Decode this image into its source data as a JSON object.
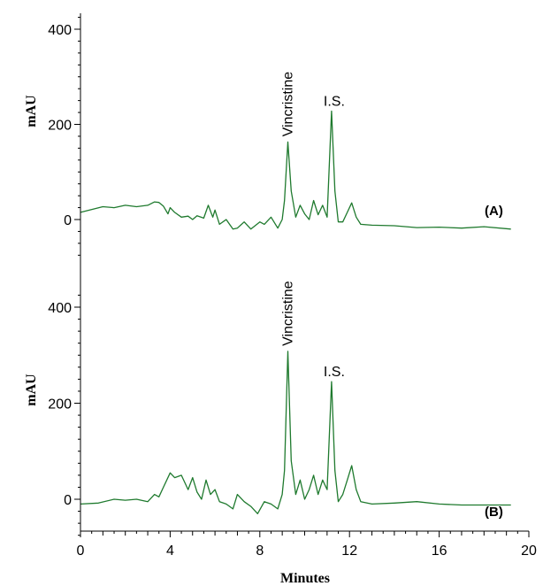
{
  "chart_data": {
    "type": "line",
    "line_color": "#1f7a2e",
    "grid": false,
    "shared_x": true,
    "xlabel": "Minutes",
    "xlim": [
      0,
      20
    ],
    "x_ticks": [
      "0",
      "4",
      "8",
      "12",
      "16",
      "20"
    ],
    "panels": [
      {
        "label": "(A)",
        "ylabel": "mAU",
        "ylim": [
          -100,
          450
        ],
        "y_ticks": [
          "0",
          "200",
          "400"
        ],
        "annotations": [
          {
            "text": "Vincristine",
            "x": 9.25,
            "y": 163,
            "rotated": true
          },
          {
            "text": "I.S.",
            "x": 11.2,
            "y": 228,
            "rotated": false
          }
        ],
        "series": [
          {
            "x": [
              0,
              1,
              1.5,
              2,
              2.5,
              3,
              3.3,
              3.5,
              3.7,
              3.9,
              4.0,
              4.2,
              4.5,
              4.8,
              5.0,
              5.2,
              5.5,
              5.7,
              5.9,
              6.0,
              6.2,
              6.5,
              6.8,
              7.0,
              7.3,
              7.6,
              8.0,
              8.2,
              8.5,
              8.8,
              9.0,
              9.1,
              9.25,
              9.4,
              9.6,
              9.8,
              10.0,
              10.2,
              10.4,
              10.6,
              10.8,
              11.0,
              11.2,
              11.35,
              11.5,
              11.7,
              11.9,
              12.1,
              12.3,
              12.5,
              13,
              14,
              15,
              16,
              17,
              18,
              19.2
            ],
            "y": [
              15,
              27,
              25,
              30,
              27,
              30,
              37,
              36,
              28,
              12,
              25,
              15,
              5,
              7,
              0,
              8,
              3,
              30,
              5,
              20,
              -10,
              0,
              -20,
              -18,
              -5,
              -20,
              -5,
              -10,
              5,
              -18,
              0,
              40,
              163,
              60,
              5,
              30,
              12,
              0,
              40,
              10,
              30,
              5,
              228,
              60,
              -5,
              -5,
              15,
              35,
              5,
              -10,
              -12,
              -13,
              -17,
              -16,
              -18,
              -15,
              -20
            ]
          }
        ]
      },
      {
        "label": "(B)",
        "ylabel": "mAU",
        "ylim": [
          -100,
          450
        ],
        "y_ticks": [
          "0",
          "200",
          "400"
        ],
        "annotations": [
          {
            "text": "Vincristine",
            "x": 9.25,
            "y": 308,
            "rotated": true
          },
          {
            "text": "I.S.",
            "x": 11.2,
            "y": 245,
            "rotated": false
          }
        ],
        "series": [
          {
            "x": [
              0,
              0.8,
              1.5,
              2,
              2.5,
              3,
              3.3,
              3.5,
              3.7,
              4.0,
              4.2,
              4.5,
              4.8,
              5.0,
              5.2,
              5.4,
              5.6,
              5.8,
              6.0,
              6.2,
              6.5,
              6.8,
              7.0,
              7.3,
              7.6,
              7.9,
              8.2,
              8.5,
              8.8,
              9.0,
              9.1,
              9.25,
              9.4,
              9.6,
              9.8,
              10.0,
              10.2,
              10.4,
              10.6,
              10.8,
              11.0,
              11.2,
              11.35,
              11.5,
              11.7,
              11.9,
              12.1,
              12.3,
              12.5,
              13,
              14,
              15,
              16,
              17,
              19.2
            ],
            "y": [
              -10,
              -8,
              0,
              -2,
              0,
              -5,
              10,
              5,
              25,
              55,
              45,
              50,
              20,
              45,
              15,
              0,
              40,
              10,
              20,
              -5,
              -10,
              -20,
              10,
              -5,
              -15,
              -30,
              -5,
              -10,
              -20,
              10,
              60,
              308,
              80,
              10,
              40,
              0,
              20,
              50,
              10,
              40,
              20,
              245,
              60,
              -5,
              10,
              40,
              70,
              20,
              -5,
              -10,
              -8,
              -5,
              -10,
              -12,
              -12
            ]
          }
        ]
      }
    ]
  }
}
